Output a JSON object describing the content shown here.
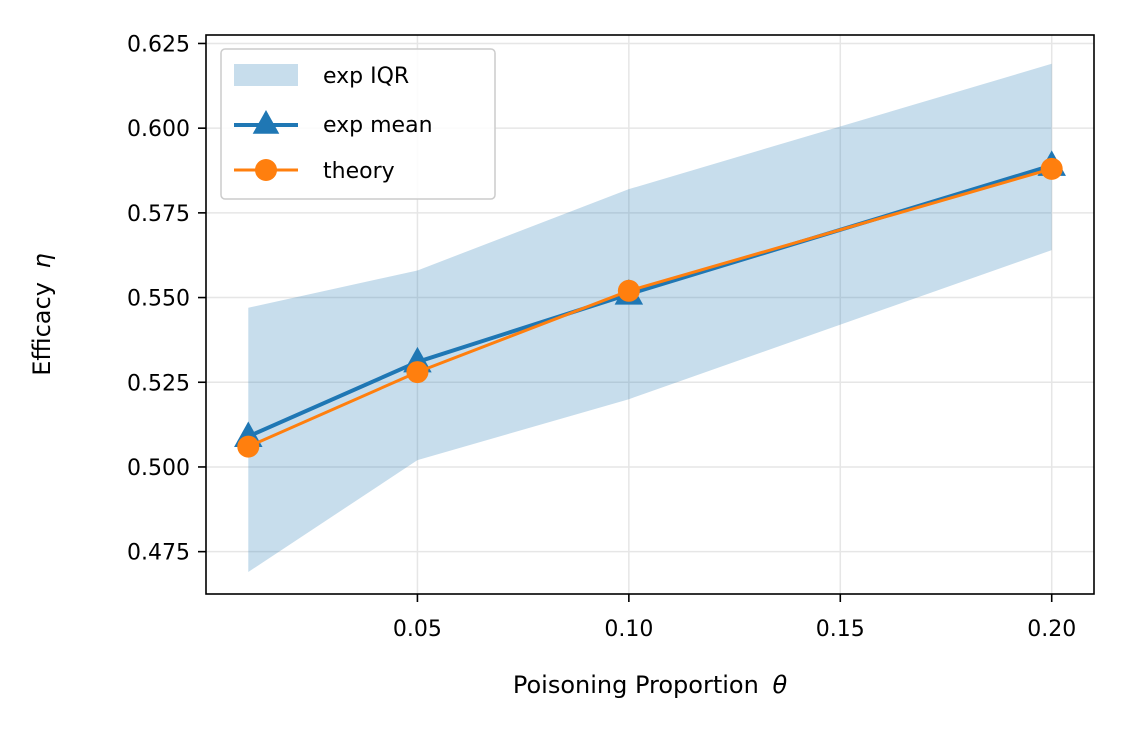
{
  "chart_data": {
    "type": "line",
    "title": "",
    "xlabel": "Poisoning Proportion",
    "xlabel_symbol": "θ",
    "ylabel": "Efficacy",
    "ylabel_symbol": "η",
    "xlim": [
      0.0,
      0.21
    ],
    "ylim": [
      0.4625,
      0.6275
    ],
    "x_ticks": [
      0.05,
      0.1,
      0.15,
      0.2
    ],
    "x_tick_labels": [
      "0.05",
      "0.10",
      "0.15",
      "0.20"
    ],
    "y_ticks": [
      0.475,
      0.5,
      0.525,
      0.55,
      0.575,
      0.6,
      0.625
    ],
    "y_tick_labels": [
      "0.475",
      "0.500",
      "0.525",
      "0.550",
      "0.575",
      "0.600",
      "0.625"
    ],
    "grid": true,
    "legend_position": "top-left",
    "x": [
      0.01,
      0.05,
      0.1,
      0.2
    ],
    "series": [
      {
        "name": "exp IQR",
        "kind": "band",
        "lower": [
          0.469,
          0.502,
          0.52,
          0.564
        ],
        "upper": [
          0.547,
          0.558,
          0.582,
          0.619
        ],
        "color": "#1f77b4",
        "opacity": 0.25
      },
      {
        "name": "exp mean",
        "kind": "line",
        "marker": "triangle",
        "values": [
          0.509,
          0.531,
          0.551,
          0.589
        ],
        "color": "#1f77b4"
      },
      {
        "name": "theory",
        "kind": "line",
        "marker": "circle",
        "values": [
          0.506,
          0.528,
          0.552,
          0.588
        ],
        "color": "#ff7f0e"
      }
    ],
    "legend": {
      "entries": [
        "exp IQR",
        "exp mean",
        "theory"
      ]
    }
  }
}
